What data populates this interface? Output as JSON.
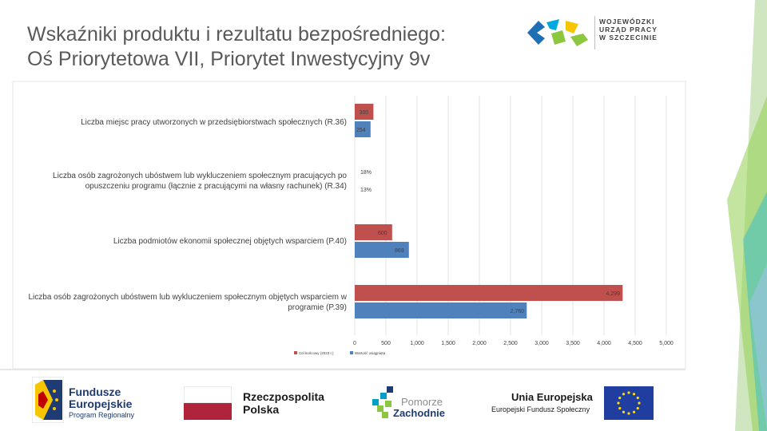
{
  "slide": {
    "title_line1": "Wskaźniki produktu i rezultatu bezpośredniego:",
    "title_line2": "Oś Priorytetowa VII, Priorytet Inwestycyjny 9v"
  },
  "header_logo": {
    "line1": "WOJEWÓDZKI",
    "line2": "URZĄD PRACY",
    "line3": "W SZCZECINIE"
  },
  "footer": {
    "fe_line1": "Fundusze",
    "fe_line2": "Europejskie",
    "fe_line3": "Program Regionalny",
    "rp_line1": "Rzeczpospolita",
    "rp_line2": "Polska",
    "pz_line1": "Pomorze",
    "pz_line2": "Zachodnie",
    "ue_line1": "Unia Europejska",
    "ue_line2": "Europejski Fundusz Społeczny"
  },
  "colors": {
    "target": "#c0504d",
    "achieved": "#4f81bd",
    "title": "#595959",
    "footer_text": "#1f3b73"
  },
  "chart_data": {
    "type": "bar",
    "orientation": "horizontal",
    "categories": [
      "Liczba miejsc pracy utworzonych w przedsiębiorstwach społecznych (R.36)",
      "Liczba osób zagrożonych ubóstwem lub wykluczeniem społecznym pracujących po opuszczeniu programu (łącznie z pracującymi na własny rachunek) (R.34)",
      "Liczba podmiotów ekonomii społecznej objętych wsparciem (P.40)",
      "Liczba osób zagrożonych ubóstwem lub wykluczeniem społecznym objętych wsparciem w programie (P.39)"
    ],
    "series": [
      {
        "name": "Cel końcowy (2023 r.)",
        "values": [
          300,
          18,
          600,
          4299
        ],
        "labels": [
          "300",
          "18%",
          "600",
          "4,299"
        ]
      },
      {
        "name": "Wartość osiągnięta",
        "values": [
          254,
          13,
          869,
          2760
        ],
        "labels": [
          "254",
          "13%",
          "869",
          "2,760"
        ]
      }
    ],
    "xlim": [
      0,
      5000
    ],
    "xticks": [
      0,
      500,
      1000,
      1500,
      2000,
      2500,
      3000,
      3500,
      4000,
      4500,
      5000
    ],
    "xtick_labels": [
      "0",
      "500",
      "1,000",
      "1,500",
      "2,000",
      "2,500",
      "3,000",
      "3,500",
      "4,000",
      "4,500",
      "5,000"
    ],
    "grid": true,
    "legend": "bottom-left"
  }
}
